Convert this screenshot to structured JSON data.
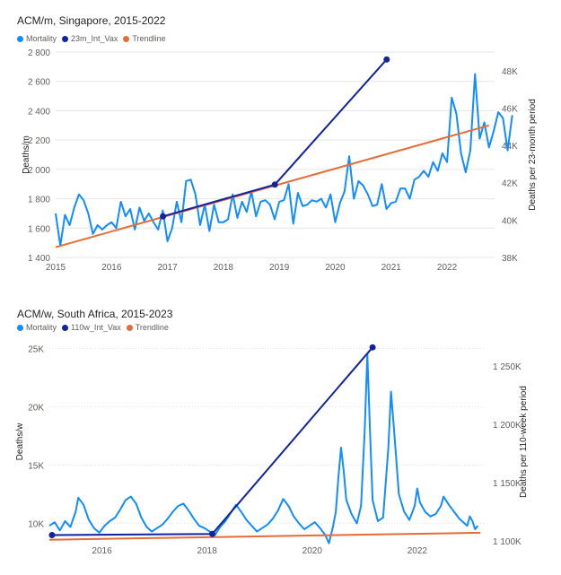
{
  "colors": {
    "mortality": "#118dff",
    "vax": "#12239e",
    "trend": "#e66c37",
    "grid": "#e6e6e6",
    "axis_text": "#605e5c"
  },
  "chart_data": [
    {
      "type": "line",
      "title": "ACM/m, Singapore, 2015-2022",
      "ylabel": "Deaths/m",
      "y2label": "Deaths per 23-month period",
      "legend": [
        "Mortality",
        "23m_Int_Vax",
        "Trendline"
      ],
      "xticks": [
        "2015",
        "2016",
        "2017",
        "2018",
        "2019",
        "2020",
        "2021",
        "2022"
      ],
      "yticks": [
        "1 400",
        "1 600",
        "1 800",
        "2 000",
        "2 200",
        "2 400",
        "2 600",
        "2 800"
      ],
      "y2ticks": [
        "38K",
        "40K",
        "42K",
        "44K",
        "46K",
        "48K"
      ],
      "xlim": [
        2015,
        2022.85
      ],
      "ylim": [
        1400,
        2800
      ],
      "y2lim": [
        38000,
        49000
      ],
      "series": [
        {
          "name": "Mortality",
          "x_start": 2015,
          "x_step": 0.0833333,
          "values": [
            1700,
            1480,
            1690,
            1620,
            1740,
            1830,
            1790,
            1700,
            1560,
            1620,
            1590,
            1620,
            1640,
            1600,
            1780,
            1680,
            1730,
            1590,
            1740,
            1650,
            1700,
            1640,
            1590,
            1720,
            1510,
            1600,
            1780,
            1640,
            1920,
            1930,
            1830,
            1620,
            1760,
            1580,
            1760,
            1640,
            1640,
            1660,
            1830,
            1670,
            1780,
            1710,
            1850,
            1680,
            1780,
            1790,
            1760,
            1660,
            1780,
            1790,
            1900,
            1630,
            1840,
            1750,
            1760,
            1790,
            1780,
            1800,
            1740,
            1830,
            1640,
            1770,
            1850,
            2090,
            1800,
            1920,
            1890,
            1830,
            1750,
            1760,
            1900,
            1730,
            1770,
            1780,
            1870,
            1870,
            1800,
            1930,
            1950,
            1990,
            1950,
            2050,
            1990,
            2110,
            2050,
            2490,
            2380,
            2110,
            1980,
            2130,
            2650,
            2210,
            2320,
            2150,
            2260,
            2390,
            2350,
            2130,
            2370
          ]
        },
        {
          "name": "23m_Int_Vax",
          "x": [
            2016.92,
            2018.92,
            2020.92
          ],
          "y": [
            40200,
            41900,
            48600
          ]
        },
        {
          "name": "Trendline",
          "x": [
            2015,
            2022.75
          ],
          "y": [
            1470,
            2300
          ]
        }
      ]
    },
    {
      "type": "line",
      "title": "ACM/w, South Africa, 2015-2023",
      "ylabel": "Deaths/w",
      "y2label": "Deaths per 110-week period",
      "legend": [
        "Mortality",
        "110w_Int_Vax",
        "Trendline"
      ],
      "xticks": [
        "2016",
        "2018",
        "2020",
        "2022"
      ],
      "yticks": [
        "10K",
        "15K",
        "20K",
        "25K"
      ],
      "y2ticks": [
        "1 100K",
        "1 150K",
        "1 200K",
        "1 250K"
      ],
      "xlim": [
        2015,
        2023.3
      ],
      "ylim": [
        8500,
        25500
      ],
      "y2lim": [
        1100000,
        1270000
      ],
      "series": [
        {
          "name": "Mortality",
          "points": [
            [
              2015.0,
              9800
            ],
            [
              2015.1,
              10100
            ],
            [
              2015.2,
              9400
            ],
            [
              2015.3,
              10200
            ],
            [
              2015.4,
              9700
            ],
            [
              2015.5,
              11000
            ],
            [
              2015.55,
              12200
            ],
            [
              2015.65,
              11600
            ],
            [
              2015.75,
              10300
            ],
            [
              2015.85,
              9600
            ],
            [
              2015.95,
              9200
            ],
            [
              2016.05,
              9800
            ],
            [
              2016.15,
              10200
            ],
            [
              2016.25,
              10500
            ],
            [
              2016.35,
              11200
            ],
            [
              2016.45,
              12000
            ],
            [
              2016.55,
              12300
            ],
            [
              2016.65,
              11700
            ],
            [
              2016.75,
              10500
            ],
            [
              2016.85,
              9700
            ],
            [
              2016.95,
              9300
            ],
            [
              2017.05,
              9600
            ],
            [
              2017.15,
              9900
            ],
            [
              2017.25,
              10400
            ],
            [
              2017.35,
              11000
            ],
            [
              2017.45,
              11500
            ],
            [
              2017.55,
              11700
            ],
            [
              2017.65,
              11100
            ],
            [
              2017.75,
              10400
            ],
            [
              2017.85,
              9800
            ],
            [
              2017.95,
              9600
            ],
            [
              2018.05,
              9300
            ],
            [
              2018.15,
              9000
            ],
            [
              2018.25,
              9700
            ],
            [
              2018.35,
              10200
            ],
            [
              2018.45,
              10900
            ],
            [
              2018.55,
              11600
            ],
            [
              2018.65,
              11000
            ],
            [
              2018.75,
              10300
            ],
            [
              2018.85,
              9800
            ],
            [
              2018.95,
              9300
            ],
            [
              2019.05,
              9600
            ],
            [
              2019.15,
              9900
            ],
            [
              2019.25,
              10400
            ],
            [
              2019.35,
              11100
            ],
            [
              2019.45,
              12100
            ],
            [
              2019.55,
              11500
            ],
            [
              2019.65,
              10600
            ],
            [
              2019.75,
              10000
            ],
            [
              2019.85,
              9500
            ],
            [
              2019.95,
              9800
            ],
            [
              2020.05,
              10100
            ],
            [
              2020.15,
              9600
            ],
            [
              2020.25,
              9000
            ],
            [
              2020.32,
              8300
            ],
            [
              2020.4,
              9800
            ],
            [
              2020.45,
              11000
            ],
            [
              2020.5,
              14000
            ],
            [
              2020.55,
              16500
            ],
            [
              2020.6,
              14500
            ],
            [
              2020.65,
              12000
            ],
            [
              2020.75,
              10800
            ],
            [
              2020.85,
              10000
            ],
            [
              2020.93,
              11500
            ],
            [
              2021.0,
              18000
            ],
            [
              2021.05,
              24500
            ],
            [
              2021.1,
              18000
            ],
            [
              2021.15,
              12000
            ],
            [
              2021.25,
              10200
            ],
            [
              2021.35,
              10500
            ],
            [
              2021.45,
              16500
            ],
            [
              2021.5,
              21300
            ],
            [
              2021.55,
              18500
            ],
            [
              2021.65,
              12500
            ],
            [
              2021.75,
              11000
            ],
            [
              2021.85,
              10300
            ],
            [
              2021.95,
              11500
            ],
            [
              2022.0,
              13000
            ],
            [
              2022.05,
              11800
            ],
            [
              2022.15,
              11000
            ],
            [
              2022.25,
              10600
            ],
            [
              2022.35,
              10800
            ],
            [
              2022.45,
              11500
            ],
            [
              2022.5,
              12300
            ],
            [
              2022.6,
              11600
            ],
            [
              2022.7,
              11000
            ],
            [
              2022.8,
              10400
            ],
            [
              2022.9,
              10000
            ],
            [
              2022.95,
              9800
            ],
            [
              2023.0,
              10600
            ],
            [
              2023.05,
              10200
            ],
            [
              2023.1,
              9500
            ],
            [
              2023.15,
              9800
            ]
          ]
        },
        {
          "name": "110w_Int_Vax",
          "x": [
            2015.05,
            2018.1,
            2021.15
          ],
          "y": [
            1105000,
            1106000,
            1266000
          ]
        },
        {
          "name": "Trendline",
          "x": [
            2015,
            2023.2
          ],
          "y": [
            8600,
            9200
          ]
        }
      ]
    }
  ]
}
